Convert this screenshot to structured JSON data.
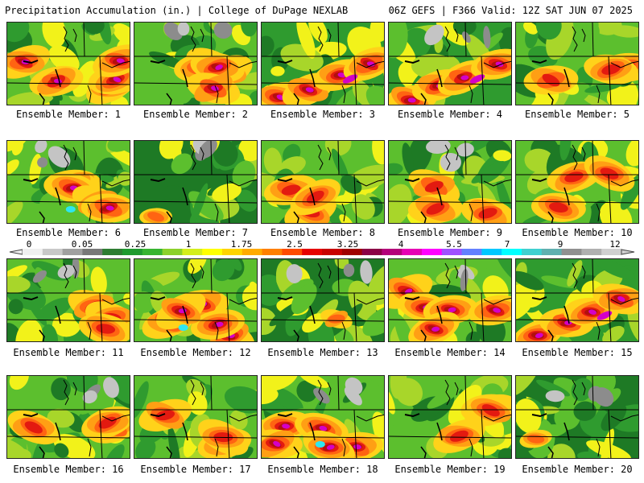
{
  "header": {
    "left": "Precipitation Accumulation (in.) | College of DuPage NEXLAB",
    "right": "06Z GEFS | F366 Valid: 12Z SAT JUN 07 2025"
  },
  "members": [
    {
      "label": "Ensemble Member: 1",
      "dominant": "heavy"
    },
    {
      "label": "Ensemble Member: 2",
      "dominant": "heavy"
    },
    {
      "label": "Ensemble Member: 3",
      "dominant": "band"
    },
    {
      "label": "Ensemble Member: 4",
      "dominant": "band"
    },
    {
      "label": "Ensemble Member: 5",
      "dominant": "moderate"
    },
    {
      "label": "Ensemble Member: 6",
      "dominant": "heavy"
    },
    {
      "label": "Ensemble Member: 7",
      "dominant": "light"
    },
    {
      "label": "Ensemble Member: 8",
      "dominant": "moderate"
    },
    {
      "label": "Ensemble Member: 9",
      "dominant": "moderate"
    },
    {
      "label": "Ensemble Member: 10",
      "dominant": "moderate"
    },
    {
      "label": "Ensemble Member: 11",
      "dominant": "moderate"
    },
    {
      "label": "Ensemble Member: 12",
      "dominant": "heavy"
    },
    {
      "label": "Ensemble Member: 13",
      "dominant": "light"
    },
    {
      "label": "Ensemble Member: 14",
      "dominant": "heavy"
    },
    {
      "label": "Ensemble Member: 15",
      "dominant": "band"
    },
    {
      "label": "Ensemble Member: 16",
      "dominant": "moderate"
    },
    {
      "label": "Ensemble Member: 17",
      "dominant": "moderate"
    },
    {
      "label": "Ensemble Member: 18",
      "dominant": "heavy"
    },
    {
      "label": "Ensemble Member: 19",
      "dominant": "moderate"
    },
    {
      "label": "Ensemble Member: 20",
      "dominant": "light"
    }
  ],
  "colorbar": {
    "tick_labels": [
      "0",
      "0.05",
      "0.25",
      "1",
      "1.75",
      "2.5",
      "3.25",
      "4",
      "5.5",
      "7",
      "9",
      "12"
    ],
    "colors": [
      "#f0f0f0",
      "#c8c8c8",
      "#a0a0a0",
      "#787878",
      "#2e7d32",
      "#1f9a2f",
      "#37b431",
      "#8cd12b",
      "#d4ee1c",
      "#ffff00",
      "#ffd400",
      "#ffaa00",
      "#ff7f00",
      "#ff4b00",
      "#e60000",
      "#c80000",
      "#a00000",
      "#8b0046",
      "#b4007a",
      "#e600b4",
      "#ff00ff",
      "#a050ff",
      "#6480ff",
      "#00c8ff",
      "#00ffff",
      "#40d0d0",
      "#60b0b0",
      "#909090",
      "#b0b0b0",
      "#d0d0d0"
    ]
  }
}
